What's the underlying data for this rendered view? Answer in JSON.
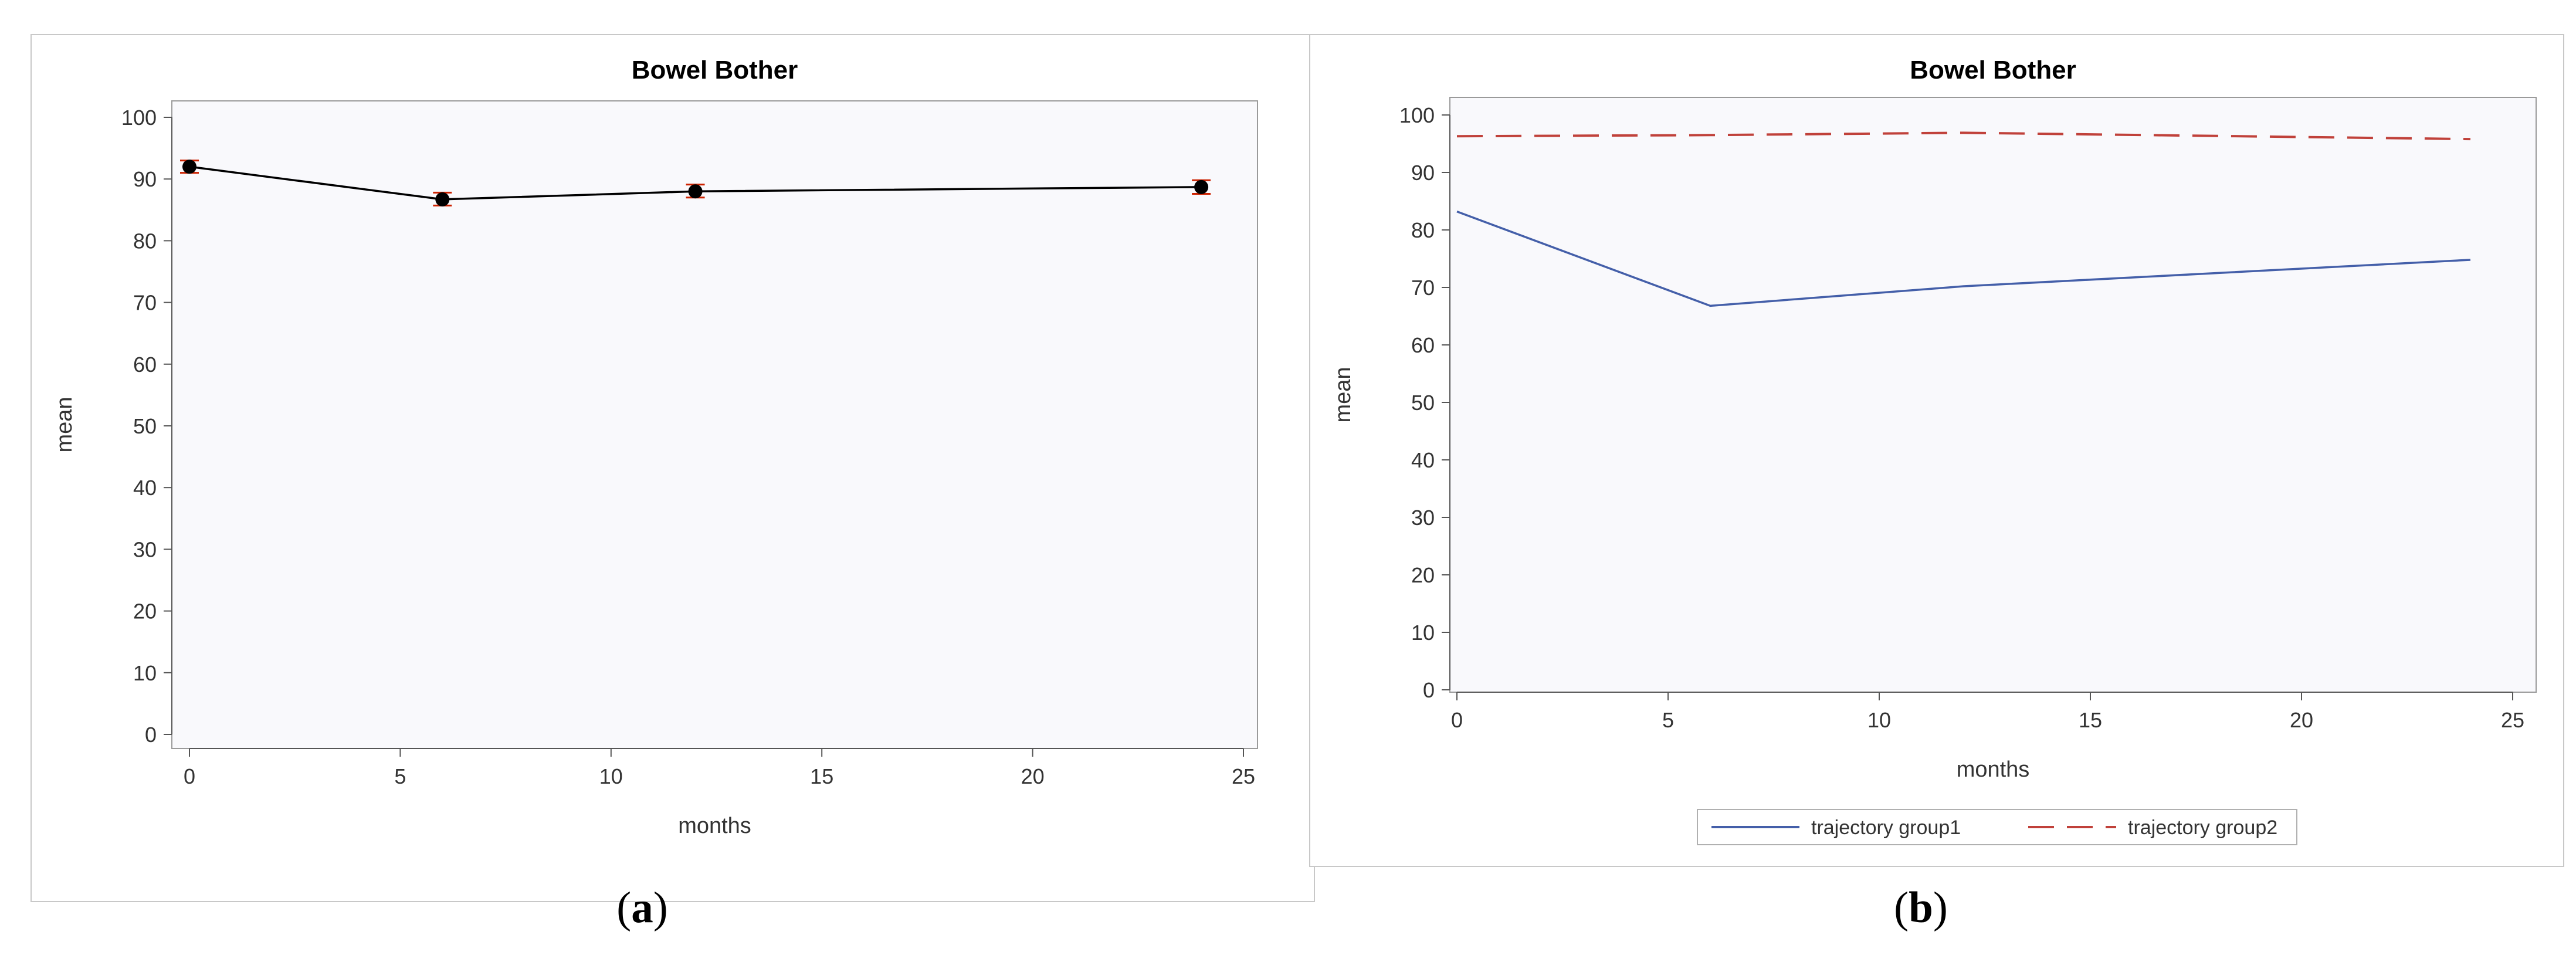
{
  "chart_data": [
    {
      "panel": "a",
      "type": "line",
      "title": "Bowel Bother",
      "xlabel": "months",
      "ylabel": "mean",
      "xlim": [
        0,
        25
      ],
      "ylim": [
        0,
        100
      ],
      "xticks": [
        0,
        5,
        10,
        15,
        20,
        25
      ],
      "yticks": [
        0,
        10,
        20,
        30,
        40,
        50,
        60,
        70,
        80,
        90,
        100
      ],
      "x": [
        0,
        6,
        12,
        24
      ],
      "series": [
        {
          "values": [
            92.0,
            86.7,
            88.0,
            88.7
          ],
          "lower": [
            91.0,
            85.7,
            87.0,
            87.6
          ],
          "upper": [
            93.0,
            87.8,
            89.1,
            89.8
          ],
          "color": "#000000",
          "marker": "circle",
          "error_bar_color": "#cc2200"
        }
      ],
      "grid": false,
      "plot_background": "#f9f9fc"
    },
    {
      "panel": "b",
      "type": "line",
      "title": "Bowel Bother",
      "xlabel": "months",
      "ylabel": "mean",
      "xlim": [
        0,
        25
      ],
      "ylim": [
        0,
        100
      ],
      "xticks": [
        0,
        5,
        10,
        15,
        20,
        25
      ],
      "yticks": [
        0,
        10,
        20,
        30,
        40,
        50,
        60,
        70,
        80,
        90,
        100
      ],
      "x": [
        0,
        6,
        12,
        24
      ],
      "series": [
        {
          "name": "trajectory group1",
          "values": [
            83.2,
            66.8,
            70.2,
            74.8
          ],
          "color": "#445fa9",
          "dash": "solid"
        },
        {
          "name": "trajectory group2",
          "values": [
            96.3,
            96.5,
            96.9,
            95.8
          ],
          "color": "#c0413a",
          "dash": "dashed"
        }
      ],
      "legend_position": "bottom-center",
      "grid": false,
      "plot_background": "#f9f9fc"
    }
  ],
  "captions": {
    "a": "a",
    "b": "b"
  }
}
